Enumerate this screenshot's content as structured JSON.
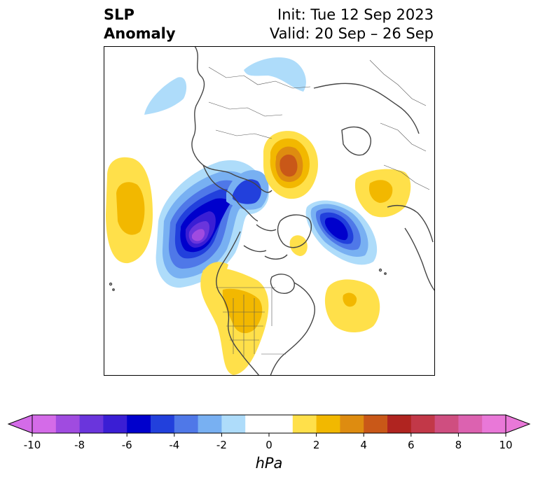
{
  "title": {
    "left_line1": "SLP",
    "left_line2": "Anomaly",
    "init": "Init: Tue 12 Sep 2023",
    "valid": "Valid: 20 Sep – 26 Sep"
  },
  "colorbar": {
    "unit_label": "hPa",
    "tick_labels": [
      "-10",
      "-8",
      "-6",
      "-4",
      "-2",
      "0",
      "2",
      "4",
      "6",
      "8",
      "10"
    ],
    "min": -10,
    "max": 10,
    "bins": [
      {
        "from": -10,
        "to": -9,
        "color": "#d46be8"
      },
      {
        "from": -9,
        "to": -8,
        "color": "#a04be0"
      },
      {
        "from": -8,
        "to": -7,
        "color": "#6a35dc"
      },
      {
        "from": -7,
        "to": -6,
        "color": "#3a1ed4"
      },
      {
        "from": -6,
        "to": -5,
        "color": "#0000cc"
      },
      {
        "from": -5,
        "to": -4,
        "color": "#2240dc"
      },
      {
        "from": -4,
        "to": -3,
        "color": "#4f78e8"
      },
      {
        "from": -3,
        "to": -2,
        "color": "#78b0f2"
      },
      {
        "from": -2,
        "to": -1,
        "color": "#aedcfa"
      },
      {
        "from": -1,
        "to": 1,
        "color": "#ffffff"
      },
      {
        "from": 1,
        "to": 2,
        "color": "#ffe04a"
      },
      {
        "from": 2,
        "to": 3,
        "color": "#f2b800"
      },
      {
        "from": 3,
        "to": 4,
        "color": "#de8c10"
      },
      {
        "from": 4,
        "to": 5,
        "color": "#c95818"
      },
      {
        "from": 5,
        "to": 6,
        "color": "#b02420"
      },
      {
        "from": 6,
        "to": 7,
        "color": "#c23848"
      },
      {
        "from": 7,
        "to": 8,
        "color": "#cf4e80"
      },
      {
        "from": 8,
        "to": 9,
        "color": "#dc62b0"
      },
      {
        "from": 9,
        "to": 10,
        "color": "#e978d8"
      }
    ],
    "extend_min_color": "#d46be8",
    "extend_max_color": "#e978d8"
  },
  "map": {
    "projection": "polar stereographic, North Pole",
    "border_color": "#444444"
  }
}
